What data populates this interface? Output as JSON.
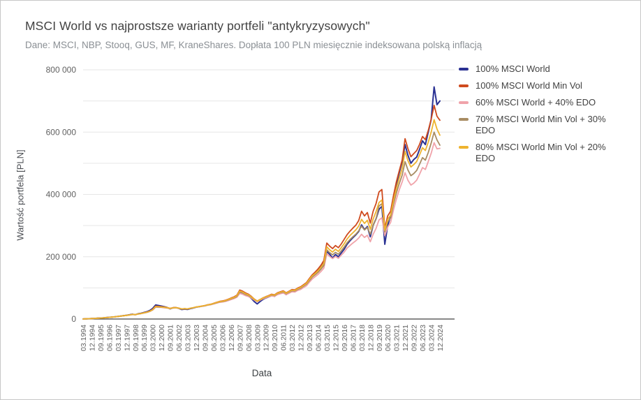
{
  "chart": {
    "title": "MSCI World vs najprostsze warianty portfeli \"antykryzysowych\"",
    "subtitle": "Dane: MSCI, NBP, Stooq, GUS, MF, KraneShares. Dopłata 100 PLN miesięcznie indeksowana polską inflacją",
    "xlabel": "Data",
    "ylabel": "Wartość portfela [PLN]"
  },
  "chart_data": {
    "type": "line",
    "title": "MSCI World vs najprostsze warianty portfeli \"antykryzysowych\"",
    "subtitle": "Dane: MSCI, NBP, Stooq, GUS, MF, KraneShares. Dopłata 100 PLN miesięcznie indeksowana polską inflacją",
    "xlabel": "Data",
    "ylabel": "Wartość portfela [PLN]",
    "legend_position": "right",
    "grid": "horizontal gridlines every 100 000, zero axis dark",
    "ylim": [
      0,
      800000
    ],
    "y_ticks": [
      "0",
      "200 000",
      "400 000",
      "600 000",
      "800 000"
    ],
    "y_tick_values": [
      0,
      200000,
      400000,
      600000,
      800000
    ],
    "x_start": "03.1994",
    "x_end": "12.2024",
    "x_step_months": 3,
    "x_note": "quarterly series; every 3rd quarter labeled on axis",
    "x_tick_labels": [
      "03.1994",
      "12.1994",
      "09.1995",
      "06.1996",
      "03.1997",
      "12.1997",
      "09.1998",
      "06.1999",
      "03.2000",
      "12.2000",
      "09.2001",
      "06.2002",
      "03.2003",
      "12.2003",
      "09.2004",
      "06.2005",
      "03.2006",
      "12.2006",
      "09.2007",
      "06.2008",
      "03.2009",
      "12.2009",
      "09.2010",
      "06.2011",
      "03.2012",
      "12.2012",
      "09.2013",
      "06.2014",
      "03.2015",
      "12.2015",
      "09.2016",
      "06.2017",
      "03.2018",
      "12.2018",
      "09.2019",
      "06.2020",
      "03.2021",
      "12.2021",
      "09.2022",
      "06.2023",
      "03.2024",
      "12.2024"
    ],
    "values_unit": "thousand PLN",
    "series": [
      {
        "name": "100% MSCI World",
        "color": "#2a3193",
        "values": [
          0.3,
          0.7,
          1.1,
          1.5,
          2,
          2.6,
          3.2,
          3.9,
          4.7,
          5.5,
          6.3,
          7.2,
          8.3,
          9.6,
          11,
          12.1,
          13.6,
          15.5,
          14,
          17,
          18.5,
          21,
          23.5,
          27.5,
          34,
          45,
          43.5,
          41.5,
          39.5,
          37,
          32.5,
          36,
          36.5,
          34,
          30.5,
          31.5,
          30.8,
          33.5,
          35.5,
          38,
          39.5,
          41,
          42.5,
          45,
          46.5,
          49.5,
          52.5,
          55.5,
          56.5,
          58.5,
          62,
          66,
          69.5,
          75,
          87,
          84,
          78,
          74,
          66,
          56,
          48.5,
          56,
          63,
          67.5,
          71,
          75.5,
          73,
          80,
          84,
          87,
          78.5,
          85.5,
          91,
          89.5,
          96,
          99.5,
          107,
          114,
          127,
          139,
          147,
          156,
          166,
          180,
          217,
          208,
          196,
          207,
          200,
          212,
          224,
          240,
          251,
          261,
          270,
          281,
          302,
          287,
          297,
          264,
          301,
          322,
          352,
          362,
          240,
          300,
          330,
          385,
          434,
          470,
          505,
          560,
          525,
          500,
          512,
          520,
          545,
          572,
          560,
          601,
          641,
          745,
          688,
          700
        ]
      },
      {
        "name": "100% MSCI World Min Vol",
        "color": "#cf4a1e",
        "values": [
          0.3,
          0.7,
          1.1,
          1.5,
          2,
          2.6,
          3.2,
          3.9,
          4.7,
          5.4,
          6.2,
          7.1,
          8.2,
          9.4,
          10.7,
          11.8,
          13.2,
          15,
          14.2,
          16.6,
          18,
          20.2,
          22.3,
          25.5,
          31,
          41.5,
          40.5,
          39.5,
          38.5,
          36.8,
          34,
          36.5,
          37,
          35,
          32,
          33,
          32.2,
          34.5,
          36.2,
          38.6,
          40,
          41.6,
          43.4,
          46,
          47.5,
          50.5,
          53.5,
          56.5,
          58,
          60,
          63.5,
          67.5,
          71,
          76.5,
          93,
          89.5,
          83.5,
          79.5,
          72.5,
          64,
          57.5,
          62.5,
          68,
          72,
          75.5,
          79.5,
          77.5,
          84,
          87.5,
          90.5,
          84,
          89.5,
          94.5,
          93.5,
          99.5,
          103.5,
          110,
          117,
          130,
          142,
          151,
          161,
          173,
          188,
          244,
          234,
          226,
          236,
          229,
          241,
          256,
          271,
          282,
          292,
          301,
          316,
          346,
          331,
          342,
          308,
          346,
          371,
          408,
          416,
          291,
          331,
          346,
          396,
          441,
          476,
          511,
          579,
          546,
          521,
          531,
          541,
          561,
          586,
          576,
          606,
          641,
          686,
          651,
          638
        ]
      },
      {
        "name": "60% MSCI World + 40% EDO",
        "color": "#f0a3aa",
        "values": [
          0.3,
          0.7,
          1.1,
          1.5,
          2,
          2.6,
          3.2,
          3.9,
          4.6,
          5.3,
          6.1,
          7,
          8,
          9.2,
          10.4,
          11.4,
          12.7,
          14.4,
          13.8,
          16,
          17.3,
          19.3,
          21.2,
          24.2,
          28.8,
          38.2,
          37.6,
          37.1,
          36.4,
          35.1,
          33.2,
          35.2,
          35.8,
          34.3,
          32.3,
          33.2,
          32.5,
          34.5,
          36,
          38.1,
          39.5,
          40.8,
          42.4,
          44.6,
          45.9,
          48.4,
          51,
          53.6,
          54.6,
          56.2,
          59.1,
          62.5,
          65.4,
          69.9,
          82,
          79.5,
          75,
          72.2,
          67.2,
          60.9,
          56,
          60.3,
          64.8,
          68.1,
          71,
          74.3,
          72.8,
          78.2,
          81.2,
          83.6,
          78.4,
          83,
          87.4,
          86.7,
          91.8,
          95.1,
          101,
          107,
          118,
          128.6,
          136,
          143.5,
          152.5,
          163.5,
          210,
          201,
          194,
          201,
          195,
          205,
          215,
          228,
          236,
          244,
          251,
          260,
          272,
          262,
          269,
          248,
          272,
          291,
          318,
          325,
          268,
          295,
          310,
          350,
          385,
          415,
          440,
          470,
          445,
          430,
          436,
          446,
          465,
          486,
          480,
          506,
          532,
          566,
          546,
          548
        ]
      },
      {
        "name": "70% MSCI World Min Vol + 30% EDO",
        "color": "#a88c63",
        "values": [
          0.3,
          0.7,
          1.1,
          1.5,
          2,
          2.6,
          3.2,
          3.9,
          4.6,
          5.4,
          6.2,
          7,
          8.1,
          9.3,
          10.5,
          11.6,
          12.9,
          14.6,
          14,
          16.2,
          17.6,
          19.6,
          21.6,
          24.6,
          29.5,
          39.2,
          38.5,
          37.9,
          37.2,
          35.8,
          33.6,
          35.7,
          36.3,
          34.7,
          32.4,
          33.4,
          32.6,
          34.7,
          36.2,
          38.4,
          39.8,
          41.2,
          42.9,
          45.2,
          46.6,
          49.3,
          52.1,
          54.9,
          56.1,
          58,
          61.1,
          64.7,
          67.8,
          72.7,
          87,
          84,
          78.9,
          75.7,
          69.9,
          62.7,
          57.2,
          61.8,
          66.7,
          70.3,
          73.4,
          77,
          75.4,
          81.3,
          84.4,
          87.1,
          81.5,
          86.4,
          91,
          90.2,
          95.7,
          99.3,
          105.5,
          112,
          123.5,
          134.6,
          142,
          150,
          160,
          172,
          222,
          213,
          206,
          214,
          208,
          219,
          231,
          245,
          255,
          264,
          272,
          283,
          298,
          286,
          294,
          272,
          300,
          322,
          363,
          370,
          280,
          312,
          325,
          368,
          405,
          435,
          462,
          505,
          478,
          460,
          467,
          477,
          497,
          518,
          510,
          535,
          565,
          600,
          575,
          558
        ]
      },
      {
        "name": "80% MSCI World Min Vol + 20% EDO",
        "color": "#eeb32f",
        "values": [
          0.3,
          0.7,
          1.1,
          1.5,
          2,
          2.6,
          3.2,
          3.9,
          4.7,
          5.4,
          6.2,
          7.1,
          8.2,
          9.4,
          10.6,
          11.7,
          13.1,
          14.8,
          14.1,
          16.4,
          17.8,
          19.9,
          21.9,
          25,
          30.2,
          40.2,
          39.4,
          38.6,
          37.8,
          36.2,
          33.8,
          36,
          36.6,
          34.8,
          32.2,
          33.2,
          32.4,
          34.6,
          36.2,
          38.5,
          39.9,
          41.4,
          43.2,
          45.6,
          47,
          49.9,
          52.8,
          55.7,
          57,
          59,
          62.3,
          66.1,
          69.4,
          74.6,
          90,
          86.8,
          81.2,
          77.6,
          71.2,
          63.4,
          57.4,
          62.2,
          67.4,
          71.2,
          74.5,
          78.3,
          76.5,
          82.7,
          86,
          88.9,
          82.8,
          88,
          92.8,
          91.9,
          97.7,
          101.5,
          108,
          114.6,
          127,
          138.6,
          146,
          155,
          166,
          179,
          232,
          222,
          215,
          224,
          217,
          229,
          242,
          257,
          268,
          277,
          286,
          298,
          320,
          307,
          317,
          288,
          321,
          345,
          374,
          382,
          285,
          320,
          334,
          380,
          420,
          452,
          484,
          538,
          508,
          488,
          496,
          506,
          527,
          550,
          541,
          568,
          600,
          640,
          610,
          590
        ]
      }
    ],
    "colors": {
      "grid": "#e6e6e6",
      "zero_axis": "#424242",
      "tick_text": "#616161",
      "title_text": "#424242",
      "subtitle_text": "#8a8f94",
      "background": "#ffffff"
    }
  }
}
